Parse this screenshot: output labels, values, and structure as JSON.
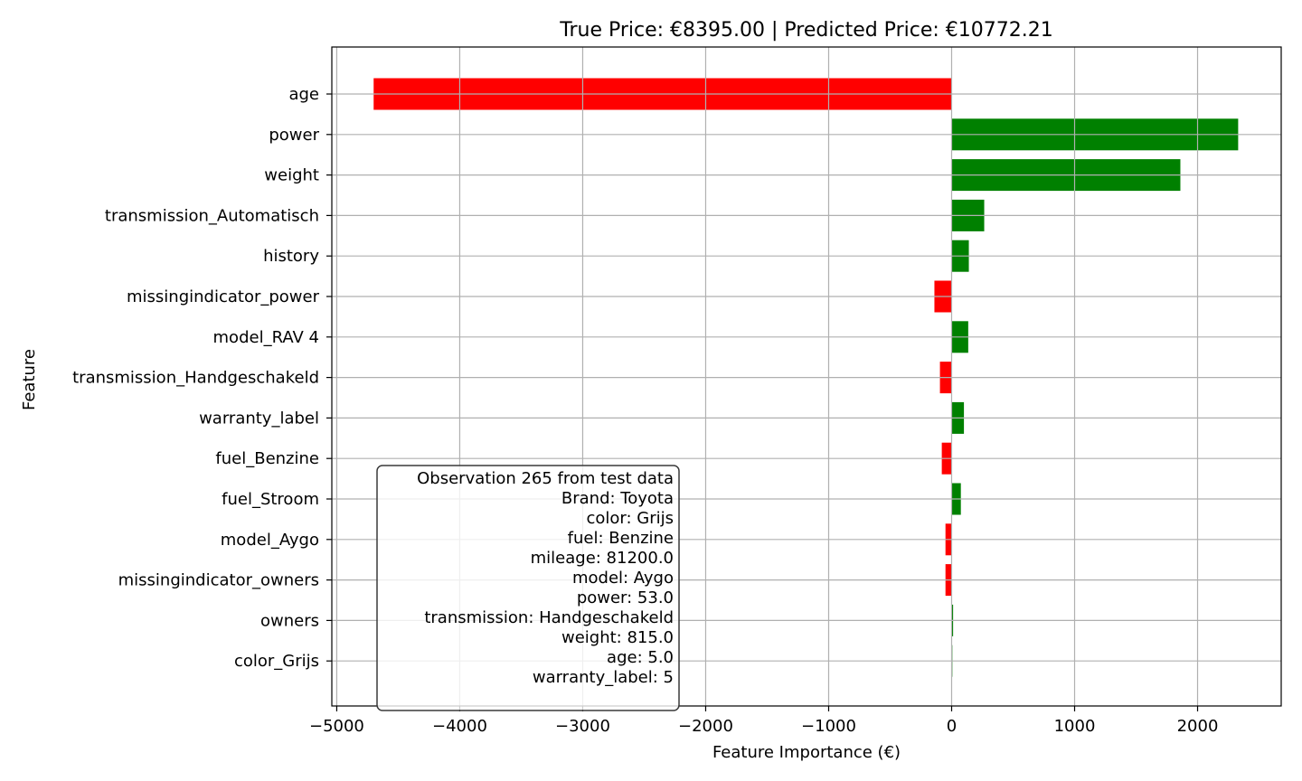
{
  "chart_data": {
    "type": "bar",
    "orientation": "horizontal",
    "title": "True Price: €8395.00 | Predicted Price: €10772.21",
    "xlabel": "Feature Importance (€)",
    "ylabel": "Feature",
    "xlim": [
      -5040,
      2680
    ],
    "xticks": [
      -5000,
      -4000,
      -3000,
      -2000,
      -1000,
      0,
      1000,
      2000
    ],
    "xtick_labels": [
      "−5000",
      "−4000",
      "−3000",
      "−2000",
      "−1000",
      "0",
      "1000",
      "2000"
    ],
    "grid": true,
    "colors": {
      "positive": "#008000",
      "negative": "#ff0000"
    },
    "categories": [
      "age",
      "power",
      "weight",
      "transmission_Automatisch",
      "history",
      "missingindicator_power",
      "model_RAV 4",
      "transmission_Handgeschakeld",
      "warranty_label",
      "fuel_Benzine",
      "fuel_Stroom",
      "model_Aygo",
      "missingindicator_owners",
      "owners",
      "color_Grijs"
    ],
    "values": [
      -4700,
      2330,
      1860,
      265,
      140,
      -140,
      135,
      -95,
      100,
      -80,
      75,
      -50,
      -50,
      12,
      2
    ],
    "annotation": {
      "placement": "lower-left",
      "lines": [
        "Observation 265 from test data",
        "Brand: Toyota",
        "color: Grijs",
        "fuel: Benzine",
        "mileage: 81200.0",
        "model: Aygo",
        "power: 53.0",
        "transmission: Handgeschakeld",
        "weight: 815.0",
        "age: 5.0",
        "warranty_label: 5"
      ]
    }
  }
}
